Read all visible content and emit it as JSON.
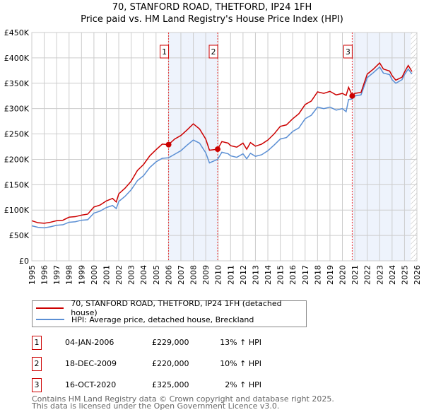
{
  "chart_data": {
    "type": "line",
    "title": "70, STANFORD ROAD, THETFORD, IP24 1FH",
    "subtitle": "Price paid vs. HM Land Registry's House Price Index (HPI)",
    "xlim": [
      1995,
      2026
    ],
    "ylim": [
      0,
      450000
    ],
    "x_ticks": [
      "1995",
      "1996",
      "1997",
      "1998",
      "1999",
      "2000",
      "2001",
      "2002",
      "2003",
      "2004",
      "2005",
      "2006",
      "2007",
      "2008",
      "2009",
      "2010",
      "2011",
      "2012",
      "2013",
      "2014",
      "2015",
      "2016",
      "2017",
      "2018",
      "2019",
      "2020",
      "2021",
      "2022",
      "2023",
      "2024",
      "2025",
      "2026"
    ],
    "y_ticks": [
      {
        "v": 0,
        "label": "£0"
      },
      {
        "v": 50000,
        "label": "£50K"
      },
      {
        "v": 100000,
        "label": "£100K"
      },
      {
        "v": 150000,
        "label": "£150K"
      },
      {
        "v": 200000,
        "label": "£200K"
      },
      {
        "v": 250000,
        "label": "£250K"
      },
      {
        "v": 300000,
        "label": "£300K"
      },
      {
        "v": 350000,
        "label": "£350K"
      },
      {
        "v": 400000,
        "label": "£400K"
      },
      {
        "v": 450000,
        "label": "£450K"
      }
    ],
    "grid": true,
    "series": [
      {
        "name": "70, STANFORD ROAD, THETFORD, IP24 1FH (detached house)",
        "color": "#cc0000",
        "x": [
          1995,
          1995.5,
          1996,
          1996.5,
          1997,
          1997.5,
          1998,
          1998.5,
          1999,
          1999.5,
          2000,
          2000.5,
          2001,
          2001.5,
          2001.8,
          2002,
          2002.5,
          2003,
          2003.5,
          2004,
          2004.5,
          2005,
          2005.5,
          2006,
          2006.5,
          2007,
          2007.5,
          2008,
          2008.5,
          2009,
          2009.3,
          2009.96,
          2010.3,
          2010.8,
          2011,
          2011.5,
          2012,
          2012.3,
          2012.6,
          2013,
          2013.5,
          2014,
          2014.5,
          2015,
          2015.5,
          2016,
          2016.5,
          2017,
          2017.5,
          2018,
          2018.5,
          2019,
          2019.5,
          2020,
          2020.3,
          2020.5,
          2020.8,
          2021,
          2021.5,
          2022,
          2022.5,
          2023,
          2023.3,
          2023.8,
          2024,
          2024.3,
          2024.8,
          2025,
          2025.3,
          2025.6
        ],
        "y": [
          79000,
          75000,
          74000,
          76000,
          79000,
          80000,
          86000,
          87000,
          90000,
          92000,
          106000,
          110000,
          118000,
          123000,
          116000,
          132000,
          143000,
          157000,
          178000,
          190000,
          207000,
          219000,
          230000,
          229000,
          240000,
          247000,
          258000,
          270000,
          260000,
          240000,
          218000,
          220000,
          235000,
          232000,
          227000,
          224000,
          232000,
          220000,
          233000,
          226000,
          230000,
          238000,
          250000,
          265000,
          268000,
          280000,
          290000,
          308000,
          315000,
          333000,
          330000,
          334000,
          327000,
          330000,
          326000,
          342000,
          325000,
          330000,
          332000,
          368000,
          378000,
          390000,
          378000,
          374000,
          365000,
          356000,
          362000,
          372000,
          385000,
          373000
        ]
      },
      {
        "name": "HPI: Average price, detached house, Breckland",
        "color": "#5b8fd4",
        "x": [
          1995,
          1995.5,
          1996,
          1996.5,
          1997,
          1997.5,
          1998,
          1998.5,
          1999,
          1999.5,
          2000,
          2000.5,
          2001,
          2001.5,
          2001.8,
          2002,
          2002.5,
          2003,
          2003.5,
          2004,
          2004.5,
          2005,
          2005.5,
          2006,
          2006.5,
          2007,
          2007.5,
          2008,
          2008.5,
          2009,
          2009.3,
          2009.96,
          2010.3,
          2010.8,
          2011,
          2011.5,
          2012,
          2012.3,
          2012.6,
          2013,
          2013.5,
          2014,
          2014.5,
          2015,
          2015.5,
          2016,
          2016.5,
          2017,
          2017.5,
          2018,
          2018.5,
          2019,
          2019.5,
          2020,
          2020.3,
          2020.5,
          2020.8,
          2021,
          2021.5,
          2022,
          2022.5,
          2023,
          2023.3,
          2023.8,
          2024,
          2024.3,
          2024.8,
          2025,
          2025.3,
          2025.6
        ],
        "y": [
          69000,
          66000,
          65000,
          67000,
          70000,
          71000,
          76000,
          77000,
          80000,
          81000,
          94000,
          98000,
          105000,
          109000,
          103000,
          117000,
          127000,
          140000,
          158000,
          168000,
          184000,
          195000,
          202000,
          203000,
          210000,
          217000,
          228000,
          238000,
          232000,
          213000,
          193000,
          200000,
          214000,
          211000,
          207000,
          204000,
          211000,
          201000,
          212000,
          206000,
          209000,
          217000,
          228000,
          240000,
          243000,
          255000,
          262000,
          280000,
          287000,
          303000,
          300000,
          303000,
          297000,
          300000,
          294000,
          318000,
          319000,
          325000,
          327000,
          361000,
          371000,
          382000,
          370000,
          367000,
          357000,
          350000,
          357000,
          367000,
          378000,
          368000
        ]
      }
    ],
    "sales": [
      {
        "n": "1",
        "x": 2006.01,
        "y": 229000,
        "date": "04-JAN-2006",
        "price": "£229,000",
        "hpi": "13% ↑ HPI"
      },
      {
        "n": "2",
        "x": 2009.96,
        "y": 220000,
        "date": "18-DEC-2009",
        "price": "£220,000",
        "hpi": "10% ↑ HPI"
      },
      {
        "n": "3",
        "x": 2020.79,
        "y": 325000,
        "date": "16-OCT-2020",
        "price": "£325,000",
        "hpi": "2% ↑ HPI"
      }
    ],
    "shaded": [
      [
        2006.01,
        2009.96
      ],
      [
        2020.79,
        2025.5
      ]
    ],
    "data_end": 2025.5,
    "legend_placement": "below"
  },
  "footer": [
    "Contains HM Land Registry data © Crown copyright and database right 2025.",
    "This data is licensed under the Open Government Licence v3.0."
  ]
}
